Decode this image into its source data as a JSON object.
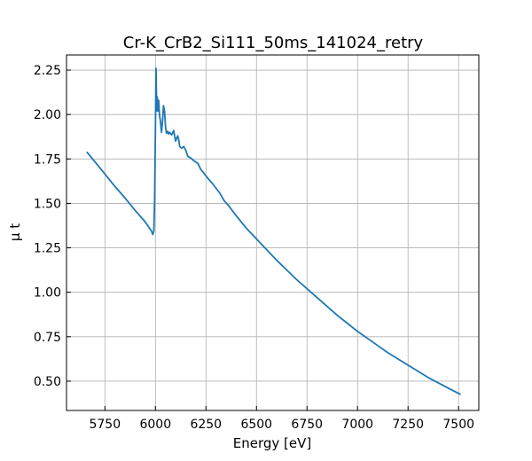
{
  "chart_data": {
    "type": "line",
    "title": "Cr-K_CrB2_Si111_50ms_141024_retry",
    "xlabel": "Energy [eV]",
    "ylabel": "μ t",
    "xlim": [
      5560,
      7600
    ],
    "ylim": [
      0.335,
      2.335
    ],
    "xticks": [
      5750,
      6000,
      6250,
      6500,
      6750,
      7000,
      7250,
      7500
    ],
    "yticks": [
      0.5,
      0.75,
      1.0,
      1.25,
      1.5,
      1.75,
      2.0,
      2.25
    ],
    "xtick_labels": [
      "5750",
      "6000",
      "6250",
      "6500",
      "6750",
      "7000",
      "7250",
      "7500"
    ],
    "ytick_labels": [
      "0.50",
      "0.75",
      "1.00",
      "1.25",
      "1.50",
      "1.75",
      "2.00",
      "2.25"
    ],
    "grid": true,
    "line_color": "#1f77b4",
    "series": [
      {
        "x": [
          5660,
          5700,
          5750,
          5800,
          5850,
          5900,
          5950,
          5980,
          5987,
          5992,
          5996,
          6000,
          6003,
          6006,
          6009,
          6012,
          6016,
          6020,
          6025,
          6030,
          6035,
          6040,
          6045,
          6050,
          6055,
          6060,
          6065,
          6070,
          6080,
          6090,
          6095,
          6100,
          6110,
          6115,
          6120,
          6130,
          6140,
          6150,
          6160,
          6175,
          6190,
          6210,
          6225,
          6240,
          6260,
          6280,
          6300,
          6320,
          6340,
          6360,
          6380,
          6400,
          6450,
          6500,
          6550,
          6600,
          6650,
          6700,
          6750,
          6800,
          6850,
          6900,
          6950,
          7000,
          7050,
          7100,
          7150,
          7200,
          7250,
          7300,
          7350,
          7400,
          7450,
          7510
        ],
        "y": [
          1.79,
          1.735,
          1.665,
          1.595,
          1.53,
          1.46,
          1.395,
          1.345,
          1.325,
          1.345,
          1.52,
          1.92,
          2.26,
          2.02,
          2.1,
          2.02,
          2.08,
          2.0,
          1.96,
          1.9,
          1.96,
          2.05,
          2.02,
          1.93,
          1.895,
          1.905,
          1.89,
          1.9,
          1.885,
          1.91,
          1.88,
          1.85,
          1.88,
          1.86,
          1.82,
          1.81,
          1.82,
          1.8,
          1.765,
          1.755,
          1.74,
          1.725,
          1.69,
          1.67,
          1.64,
          1.615,
          1.585,
          1.555,
          1.515,
          1.49,
          1.46,
          1.43,
          1.36,
          1.3,
          1.24,
          1.18,
          1.125,
          1.07,
          1.02,
          0.97,
          0.92,
          0.87,
          0.825,
          0.78,
          0.74,
          0.7,
          0.66,
          0.625,
          0.59,
          0.555,
          0.52,
          0.49,
          0.46,
          0.425
        ]
      }
    ]
  }
}
